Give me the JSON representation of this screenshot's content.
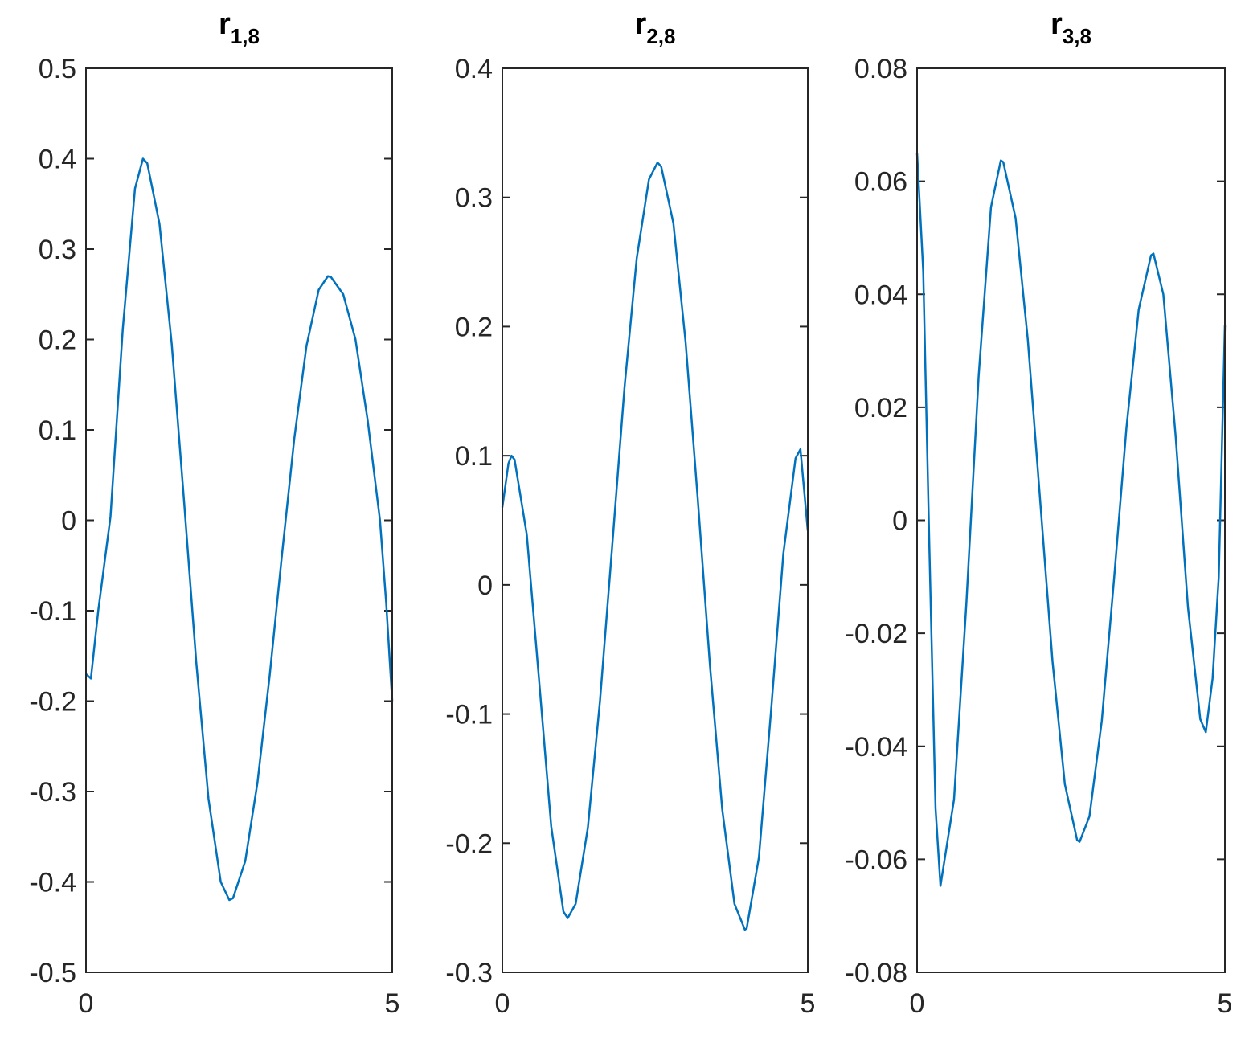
{
  "chart_data": [
    {
      "type": "line",
      "title": "r",
      "title_subscript": "1,8",
      "color": "#0072BD",
      "x": [
        0,
        0.08,
        0.2,
        0.4,
        0.6,
        0.8,
        0.93,
        1.0,
        1.2,
        1.4,
        1.6,
        1.8,
        2.0,
        2.2,
        2.34,
        2.4,
        2.6,
        2.8,
        3.0,
        3.2,
        3.4,
        3.6,
        3.8,
        3.95,
        4.0,
        4.2,
        4.4,
        4.6,
        4.8,
        4.9,
        5.0
      ],
      "values": [
        -0.17,
        -0.175,
        -0.1,
        0.004,
        0.211,
        0.367,
        0.4,
        0.395,
        0.328,
        0.195,
        0.022,
        -0.157,
        -0.308,
        -0.4,
        -0.42,
        -0.418,
        -0.377,
        -0.29,
        -0.171,
        -0.038,
        0.09,
        0.193,
        0.255,
        0.27,
        0.269,
        0.25,
        0.2,
        0.11,
        0.0,
        -0.09,
        -0.2
      ],
      "xlim": [
        0,
        5
      ],
      "xticks": [
        0,
        5
      ],
      "ylim": [
        -0.5,
        0.5
      ],
      "yticks": [
        -0.5,
        -0.4,
        -0.3,
        -0.2,
        -0.1,
        0,
        0.1,
        0.2,
        0.3,
        0.4,
        0.5
      ]
    },
    {
      "type": "line",
      "title": "r",
      "title_subscript": "2,8",
      "color": "#0072BD",
      "x": [
        0,
        0.1,
        0.15,
        0.2,
        0.4,
        0.6,
        0.8,
        1.0,
        1.07,
        1.2,
        1.4,
        1.6,
        1.8,
        2.0,
        2.2,
        2.4,
        2.54,
        2.6,
        2.8,
        3.0,
        3.2,
        3.4,
        3.6,
        3.8,
        3.97,
        4.0,
        4.2,
        4.4,
        4.6,
        4.8,
        4.88,
        5.0
      ],
      "values": [
        0.06,
        0.094,
        0.1,
        0.097,
        0.039,
        -0.073,
        -0.187,
        -0.253,
        -0.258,
        -0.247,
        -0.188,
        -0.089,
        0.031,
        0.153,
        0.253,
        0.314,
        0.327,
        0.324,
        0.28,
        0.188,
        0.066,
        -0.063,
        -0.174,
        -0.247,
        -0.267,
        -0.266,
        -0.211,
        -0.097,
        0.024,
        0.098,
        0.105,
        0.042
      ],
      "xlim": [
        0,
        5
      ],
      "xticks": [
        0,
        5
      ],
      "ylim": [
        -0.3,
        0.4
      ],
      "yticks": [
        -0.3,
        -0.2,
        -0.1,
        0,
        0.1,
        0.2,
        0.3,
        0.4
      ]
    },
    {
      "type": "line",
      "title": "r",
      "title_subscript": "3,8",
      "color": "#0072BD",
      "x": [
        0,
        0.1,
        0.2,
        0.3,
        0.38,
        0.6,
        0.8,
        1.0,
        1.2,
        1.36,
        1.4,
        1.6,
        1.8,
        2.0,
        2.2,
        2.4,
        2.6,
        2.64,
        2.8,
        3.0,
        3.2,
        3.4,
        3.6,
        3.8,
        3.84,
        4.0,
        4.2,
        4.4,
        4.6,
        4.69,
        4.8,
        4.9,
        5.0
      ],
      "values": [
        0.065,
        0.044,
        -0.005,
        -0.051,
        -0.0647,
        -0.0494,
        -0.0148,
        0.0255,
        0.0554,
        0.0637,
        0.0634,
        0.0535,
        0.0318,
        0.0034,
        -0.025,
        -0.0467,
        -0.0566,
        -0.0569,
        -0.0524,
        -0.0355,
        -0.0103,
        0.0163,
        0.0373,
        0.0469,
        0.0472,
        0.04,
        0.0149,
        -0.0154,
        -0.0352,
        -0.0375,
        -0.028,
        -0.01,
        0.0346
      ],
      "xlim": [
        0,
        5
      ],
      "xticks": [
        0,
        5
      ],
      "ylim": [
        -0.08,
        0.08
      ],
      "yticks": [
        -0.08,
        -0.06,
        -0.04,
        -0.02,
        0,
        0.02,
        0.04,
        0.06,
        0.08
      ]
    }
  ]
}
